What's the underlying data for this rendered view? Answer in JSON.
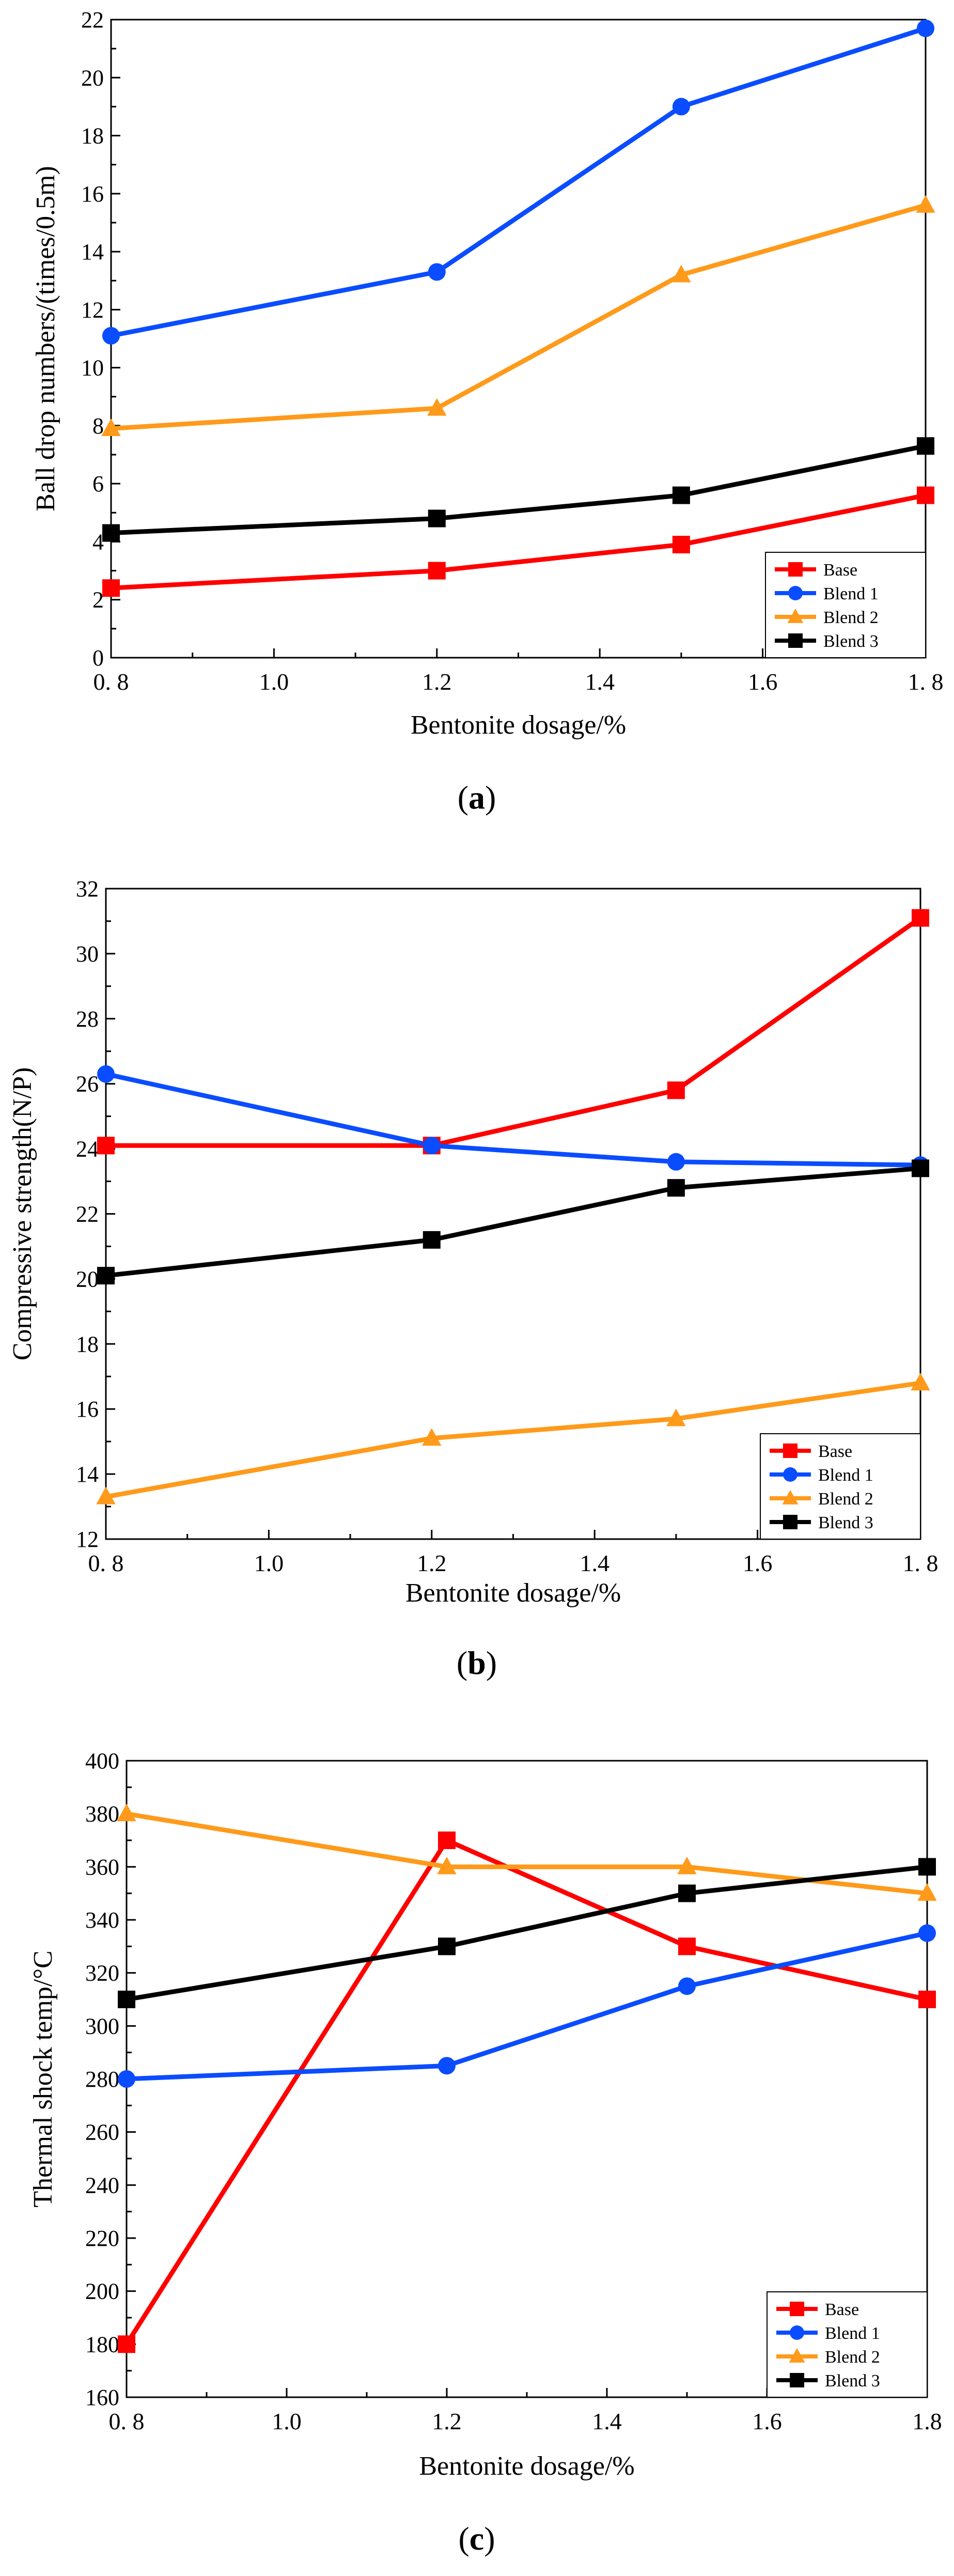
{
  "figure": {
    "panels": [
      "(a)",
      "(b)",
      "(c)"
    ]
  },
  "chart_data": [
    {
      "type": "line",
      "panel_label": "(a)",
      "title": "",
      "xlabel": "Bentonite dosage/%",
      "ylabel": "Ball drop numbers/(times/0.5m)",
      "x": [
        0.8,
        1.2,
        1.5,
        1.8
      ],
      "xlim": [
        0.8,
        1.8
      ],
      "ylim": [
        0,
        22
      ],
      "xticks": [
        0.8,
        1.0,
        1.2,
        1.4,
        1.6,
        1.8
      ],
      "xtick_labels": [
        "0. 8",
        "1.0",
        "1.2",
        "1.4",
        "1.6",
        "1. 8"
      ],
      "yticks": [
        0,
        2,
        4,
        6,
        8,
        10,
        12,
        14,
        16,
        18,
        20,
        22
      ],
      "ytick_labels": [
        "0",
        "2",
        "4",
        "6",
        "8",
        "10",
        "12",
        "14",
        "16",
        "18",
        "20",
        "22"
      ],
      "grid": false,
      "legend_position": "bottom-right",
      "series": [
        {
          "name": "Base",
          "marker": "square",
          "color": "#ff0000",
          "values": [
            2.4,
            3.0,
            3.9,
            5.6
          ]
        },
        {
          "name": "Blend 1",
          "marker": "circle",
          "color": "#0a4cff",
          "values": [
            11.1,
            13.3,
            19.0,
            21.7
          ]
        },
        {
          "name": "Blend 2",
          "marker": "triangle",
          "color": "#ff9a1a",
          "values": [
            7.9,
            8.6,
            13.2,
            15.6
          ]
        },
        {
          "name": "Blend 3",
          "marker": "square",
          "color": "#000000",
          "values": [
            4.3,
            4.8,
            5.6,
            7.3
          ]
        }
      ]
    },
    {
      "type": "line",
      "panel_label": "(b)",
      "title": "",
      "xlabel": "Bentonite dosage/%",
      "ylabel": "Compressive strength(N/P)",
      "x": [
        0.8,
        1.2,
        1.5,
        1.8
      ],
      "xlim": [
        0.8,
        1.8
      ],
      "ylim": [
        12,
        32
      ],
      "xticks": [
        0.8,
        1.0,
        1.2,
        1.4,
        1.6,
        1.8
      ],
      "xtick_labels": [
        "0. 8",
        "1.0",
        "1.2",
        "1.4",
        "1.6",
        "1. 8"
      ],
      "yticks": [
        12,
        14,
        16,
        18,
        20,
        22,
        24,
        26,
        28,
        30,
        32
      ],
      "ytick_labels": [
        "12",
        "14",
        "16",
        "18",
        "20",
        "22",
        "24",
        "26",
        "28",
        "30",
        "32"
      ],
      "grid": false,
      "legend_position": "bottom-right",
      "series": [
        {
          "name": "Base",
          "marker": "square",
          "color": "#ff0000",
          "values": [
            24.1,
            24.1,
            25.8,
            31.1
          ]
        },
        {
          "name": "Blend 1",
          "marker": "circle",
          "color": "#0a4cff",
          "values": [
            26.3,
            24.1,
            23.6,
            23.5
          ]
        },
        {
          "name": "Blend 2",
          "marker": "triangle",
          "color": "#ff9a1a",
          "values": [
            13.3,
            15.1,
            15.7,
            16.8
          ]
        },
        {
          "name": "Blend 3",
          "marker": "square",
          "color": "#000000",
          "values": [
            20.1,
            21.2,
            22.8,
            23.4
          ]
        }
      ]
    },
    {
      "type": "line",
      "panel_label": "(c)",
      "title": "",
      "xlabel": "Bentonite dosage/%",
      "ylabel": "Thermal shock temp/°C",
      "x": [
        0.8,
        1.2,
        1.5,
        1.8
      ],
      "xlim": [
        0.8,
        1.8
      ],
      "ylim": [
        160,
        400
      ],
      "xticks": [
        0.8,
        1.0,
        1.2,
        1.4,
        1.6,
        1.8
      ],
      "xtick_labels": [
        "0. 8",
        "1.0",
        "1.2",
        "1.4",
        "1.6",
        "1.8"
      ],
      "yticks": [
        160,
        180,
        200,
        220,
        240,
        260,
        280,
        300,
        320,
        340,
        360,
        380,
        400
      ],
      "ytick_labels": [
        "160",
        "180",
        "200",
        "220",
        "240",
        "260",
        "280",
        "300",
        "320",
        "340",
        "360",
        "380",
        "400"
      ],
      "grid": false,
      "legend_position": "bottom-right",
      "series": [
        {
          "name": "Base",
          "marker": "square",
          "color": "#ff0000",
          "values": [
            180,
            370,
            330,
            310
          ]
        },
        {
          "name": "Blend 1",
          "marker": "circle",
          "color": "#0a4cff",
          "values": [
            280,
            285,
            315,
            335
          ]
        },
        {
          "name": "Blend 2",
          "marker": "triangle",
          "color": "#ff9a1a",
          "values": [
            380,
            360,
            360,
            350
          ]
        },
        {
          "name": "Blend 3",
          "marker": "square",
          "color": "#000000",
          "values": [
            310,
            330,
            350,
            360
          ]
        }
      ]
    }
  ]
}
